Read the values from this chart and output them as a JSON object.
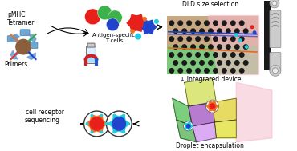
{
  "title": "",
  "bg_color": "#ffffff",
  "labels": {
    "pmhc": "pMHC\nTetramer",
    "primers": "Primers",
    "antigen": "Antigen-specifc\nT cells",
    "dld": "DLD size selection",
    "integrated": "↓ Integrated device",
    "droplet": "Droplet encapsulation",
    "tcr": "T cell receptor\nsequencing"
  },
  "dld_top_color": "#c8a882",
  "dld_bottom_color": "#7dc87d",
  "dld_pink_color": "#f5b8c8",
  "colors": {
    "red": "#e8201a",
    "green": "#3cb34a",
    "blue": "#2244cc",
    "cyan": "#22ccdd",
    "orange": "#f07020",
    "dark_green": "#228833",
    "purple": "#9944bb",
    "yellow_green": "#ccdd22"
  }
}
